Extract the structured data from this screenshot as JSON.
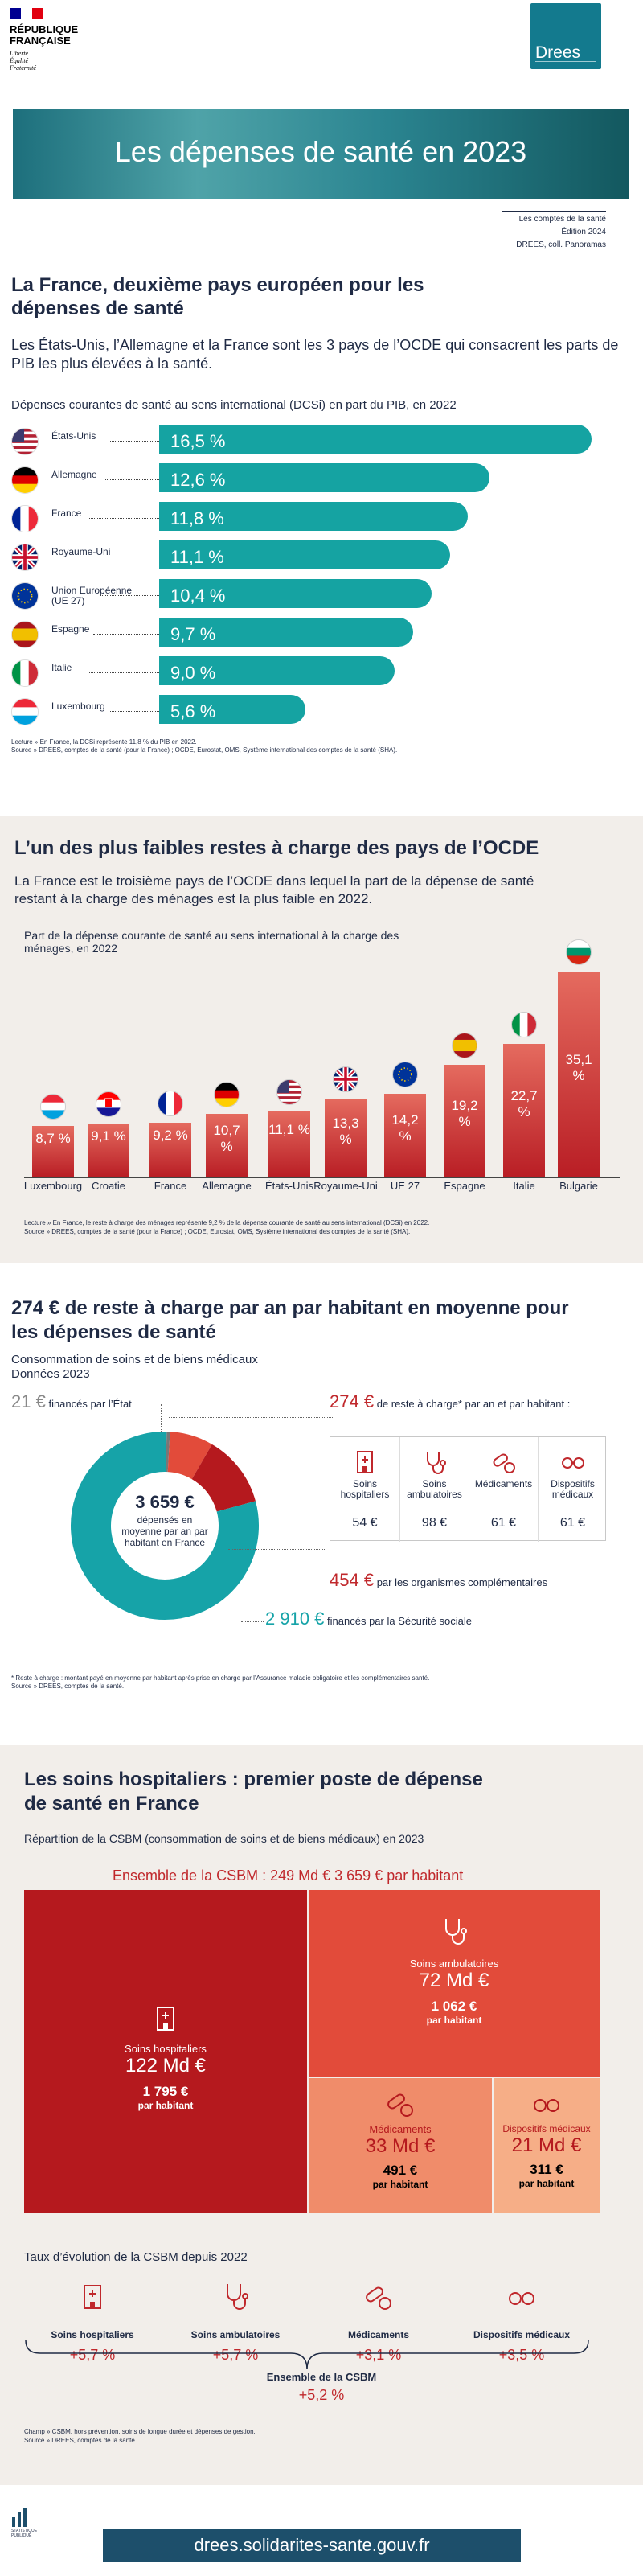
{
  "header": {
    "rf_name_lines": [
      "RÉPUBLIQUE",
      "FRANÇAISE"
    ],
    "rf_motto": [
      "Liberté",
      "Égalité",
      "Fraternité"
    ],
    "logo": "Drees",
    "title": "Les dépenses de santé en 2023",
    "meta": [
      "Les comptes de la santé",
      "Édition 2024",
      "DREES, coll. Panoramas"
    ]
  },
  "s1": {
    "title": "La France, deuxième pays européen pour les dépenses de santé",
    "lead": "Les États-Unis, l’Allemagne et la France sont les 3 pays de l’OCDE qui consacrent les parts de PIB les plus élevées à la santé.",
    "chart_title": "Dépenses courantes de santé au sens international (DCSi) en part du PIB, en 2022",
    "note_lecture": "Lecture » En France, la DCSi représente 11,8 % du PIB en 2022.",
    "note_source": "Source » DREES, comptes de la santé (pour la France) ; OCDE, Eurostat, OMS, Système international des comptes de la santé (SHA)."
  },
  "chart_data": [
    {
      "type": "bar",
      "title": "Dépenses courantes de santé au sens international (DCSi) en part du PIB, en 2022",
      "categories": [
        "États-Unis",
        "Allemagne",
        "France",
        "Royaume-Uni",
        "Union Européenne (UE 27)",
        "Espagne",
        "Italie",
        "Luxembourg"
      ],
      "values": [
        16.5,
        12.6,
        11.8,
        11.1,
        10.4,
        9.7,
        9.0,
        5.6
      ],
      "labels": [
        "16,5 %",
        "12,6 %",
        "11,8 %",
        "11,1 %",
        "10,4 %",
        "9,7 %",
        "9,0 %",
        "5,6 %"
      ],
      "color": "#15a3a2"
    },
    {
      "type": "bar",
      "title": "Part de la dépense courante de santé au sens international à la charge des ménages, en 2022",
      "categories": [
        "Luxembourg",
        "Croatie",
        "France",
        "Allemagne",
        "États-Unis",
        "Royaume-Uni",
        "UE 27",
        "Espagne",
        "Italie",
        "Bulgarie"
      ],
      "values": [
        8.7,
        9.1,
        9.2,
        10.7,
        11.1,
        13.3,
        14.2,
        19.2,
        22.7,
        35.1
      ],
      "labels": [
        "8,7 %",
        "9,1 %",
        "9,2 %",
        "10,7 %",
        "11,1 %",
        "13,3 %",
        "14,2 %",
        "19,2 %",
        "22,7 %",
        "35,1 %"
      ],
      "color": "#c0282c"
    },
    {
      "type": "pie",
      "title": "Consommation de soins et de biens médicaux Données 2023",
      "categories": [
        "financés par l’État",
        "de reste à charge par an et par habitant",
        "par les organismes complémentaires",
        "financés par la Sécurité sociale"
      ],
      "values": [
        21,
        274,
        454,
        2910
      ],
      "total": 3659
    }
  ],
  "s1_rows": [
    {
      "country": "États-Unis",
      "label": "16,5 %"
    },
    {
      "country": "Allemagne",
      "label": "12,6 %"
    },
    {
      "country": "France",
      "label": "11,8 %"
    },
    {
      "country": "Royaume-Uni",
      "label": "11,1 %"
    },
    {
      "country": "Union Européenne (UE 27)",
      "label": "10,4 %"
    },
    {
      "country": "Espagne",
      "label": "9,7 %"
    },
    {
      "country": "Italie",
      "label": "9,0 %"
    },
    {
      "country": "Luxembourg",
      "label": "5,6 %"
    }
  ],
  "s2": {
    "title": "L’un des plus faibles restes à charge des pays de l’OCDE",
    "lead": "La France est le troisième pays de l’OCDE dans lequel la part de la dépense de santé restant à la charge des ménages est la plus faible en 2022.",
    "chart_title": "Part de la dépense courante de santé au sens international à la charge des ménages, en 2022",
    "note_lecture": "Lecture » En France, le reste à charge des ménages représente 9,2 % de la dépense courante de santé au sens international (DCSi) en 2022.",
    "note_source": "Source » DREES, comptes de la santé (pour la France) ; OCDE, Eurostat, OMS, Système international des comptes de la santé (SHA)."
  },
  "s3": {
    "title": "274 € de reste à charge par an par habitant en moyenne pour les dépenses de santé",
    "sub1": "Consommation de soins et de biens médicaux",
    "sub2": "Données 2023",
    "etat_value": "21 €",
    "etat_label": "financés par l’État",
    "rac_value": "274 €",
    "rac_label": "de reste à charge* par an et par habitant :",
    "center_value": "3 659 €",
    "center_label": "dépensés en moyenne par an par habitant en France",
    "oc_value": "454 €",
    "oc_label": "par les organismes complémentaires",
    "ss_value": "2 910 €",
    "ss_label": "financés par la Sécurité sociale",
    "cats": [
      {
        "label": "Soins hospitaliers",
        "value": "54 €"
      },
      {
        "label": "Soins ambulatoires",
        "value": "98 €"
      },
      {
        "label": "Médicaments",
        "value": "61 €"
      },
      {
        "label": "Dispositifs médicaux",
        "value": "61 €"
      }
    ],
    "note_star": "* Reste à charge : montant payé en moyenne par habitant après prise en charge par l’Assurance maladie obligatoire et les complémentaires santé.",
    "note_source": "Source » DREES, comptes de la santé."
  },
  "s4": {
    "title": "Les soins hospitaliers : premier poste de dépense de santé en France",
    "chart_title": "Répartition de la CSBM (consommation de soins et de biens médicaux) en 2023",
    "total": "Ensemble de la CSBM : 249 Md € 3 659 € par habitant",
    "tiles": [
      {
        "label": "Soins hospitaliers",
        "value": "122 Md €",
        "per": "1 795 €",
        "per_label": "par habitant"
      },
      {
        "label": "Soins ambulatoires",
        "value": "72 Md €",
        "per": "1 062 €",
        "per_label": "par habitant"
      },
      {
        "label": "Médicaments",
        "value": "33 Md €",
        "per": "491 €",
        "per_label": "par habitant"
      },
      {
        "label": "Dispositifs médicaux",
        "value": "21 Md €",
        "per": "311 €",
        "per_label": "par habitant"
      }
    ],
    "evol_title": "Taux d’évolution de la CSBM depuis 2022",
    "evols": [
      {
        "label": "Soins hospitaliers",
        "value": "+5,7 %"
      },
      {
        "label": "Soins ambulatoires",
        "value": "+5,7 %"
      },
      {
        "label": "Médicaments",
        "value": "+3,1 %"
      },
      {
        "label": "Dispositifs médicaux",
        "value": "+3,5 %"
      }
    ],
    "ens_label": "Ensemble de la CSBM",
    "ens_value": "+5,2 %",
    "note_champ": "Champ » CSBM, hors prévention, soins de longue durée et dépenses de gestion.",
    "note_source": "Source » DREES, comptes de la santé."
  },
  "footer": {
    "stat_label": "STATISTIQUE PUBLIQUE",
    "url": "drees.solidarites-sante.gouv.fr"
  },
  "colors": {
    "teal": "#15a3a2",
    "red": "#c0282c",
    "navy": "#1f2a44",
    "beige": "#f2eeea"
  }
}
